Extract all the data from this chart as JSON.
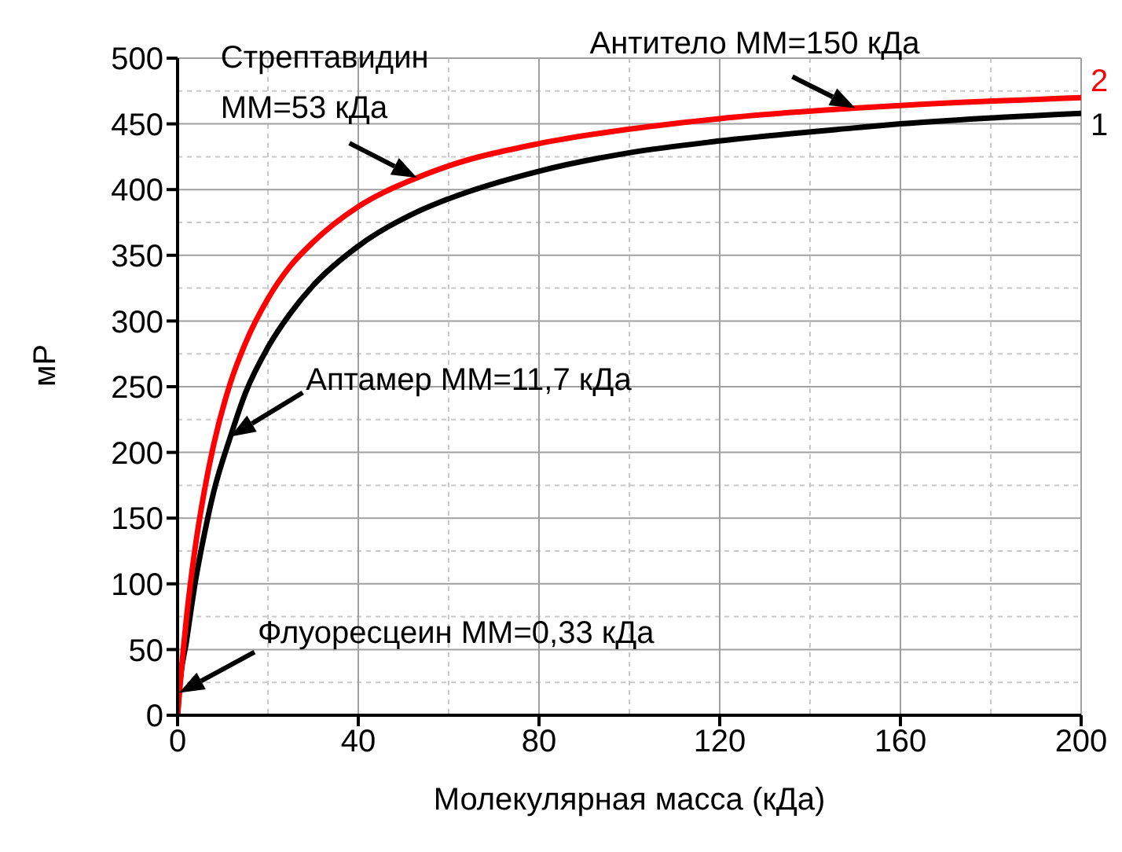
{
  "chart_data": {
    "type": "line",
    "xlabel": "Молекулярная масса (кДа)",
    "ylabel": "мР",
    "x": [
      0,
      0.33,
      2,
      4,
      6,
      8,
      11.7,
      15,
      20,
      25,
      30,
      40,
      53,
      60,
      80,
      100,
      120,
      150,
      160,
      200
    ],
    "series": [
      {
        "name": "1",
        "color": "#000000",
        "values": [
          0,
          17,
          57,
          103,
          139,
          170,
          212,
          245,
          280,
          306,
          327,
          357,
          383,
          393,
          414,
          428,
          437,
          447,
          450,
          458
        ]
      },
      {
        "name": "2",
        "color": "#ff0000",
        "values": [
          0,
          14,
          75,
          130,
          172,
          206,
          253,
          283,
          317,
          342,
          360,
          387,
          409,
          418,
          435,
          446,
          454,
          462,
          464,
          470
        ]
      }
    ],
    "xlim": [
      0,
      200
    ],
    "xticks": [
      0,
      40,
      80,
      120,
      160,
      200
    ],
    "ylim": [
      0,
      500
    ],
    "yticks": [
      0,
      50,
      100,
      150,
      200,
      250,
      300,
      350,
      400,
      450,
      500
    ],
    "grid": true,
    "marker": "none",
    "line_style": "solid",
    "annotations": [
      {
        "text": "Стрептавидин\nММ=53 кДа",
        "x": 53,
        "y": 409
      },
      {
        "text": "Антитело ММ=150 кДа",
        "x": 150,
        "y": 462
      },
      {
        "text": "Аптамер ММ=11,7 кДа",
        "x": 11.7,
        "y": 212
      },
      {
        "text": "Флуоресцеин ММ=0,33 кДа",
        "x": 0.33,
        "y": 17
      }
    ]
  }
}
